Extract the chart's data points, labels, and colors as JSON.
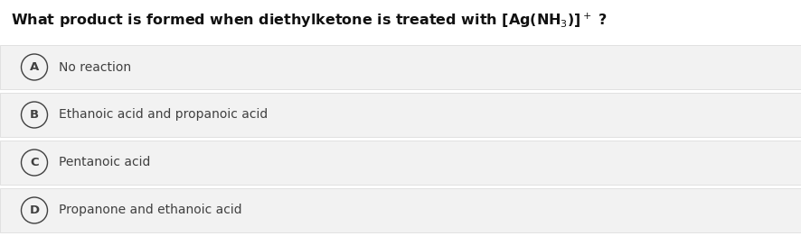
{
  "bg_color": "#ffffff",
  "option_bg_color": "#f2f2f2",
  "option_border_color": "#d8d8d8",
  "circle_color": "#404040",
  "text_color": "#404040",
  "title_color": "#111111",
  "title_fontsize": 11.5,
  "option_fontsize": 10.0,
  "label_fontsize": 9.5,
  "options": [
    {
      "label": "A",
      "text": "No reaction"
    },
    {
      "label": "B",
      "text": "Ethanoic acid and propanoic acid"
    },
    {
      "label": "C",
      "text": "Pentanoic acid"
    },
    {
      "label": "D",
      "text": "Propanone and ethanoic acid"
    }
  ]
}
